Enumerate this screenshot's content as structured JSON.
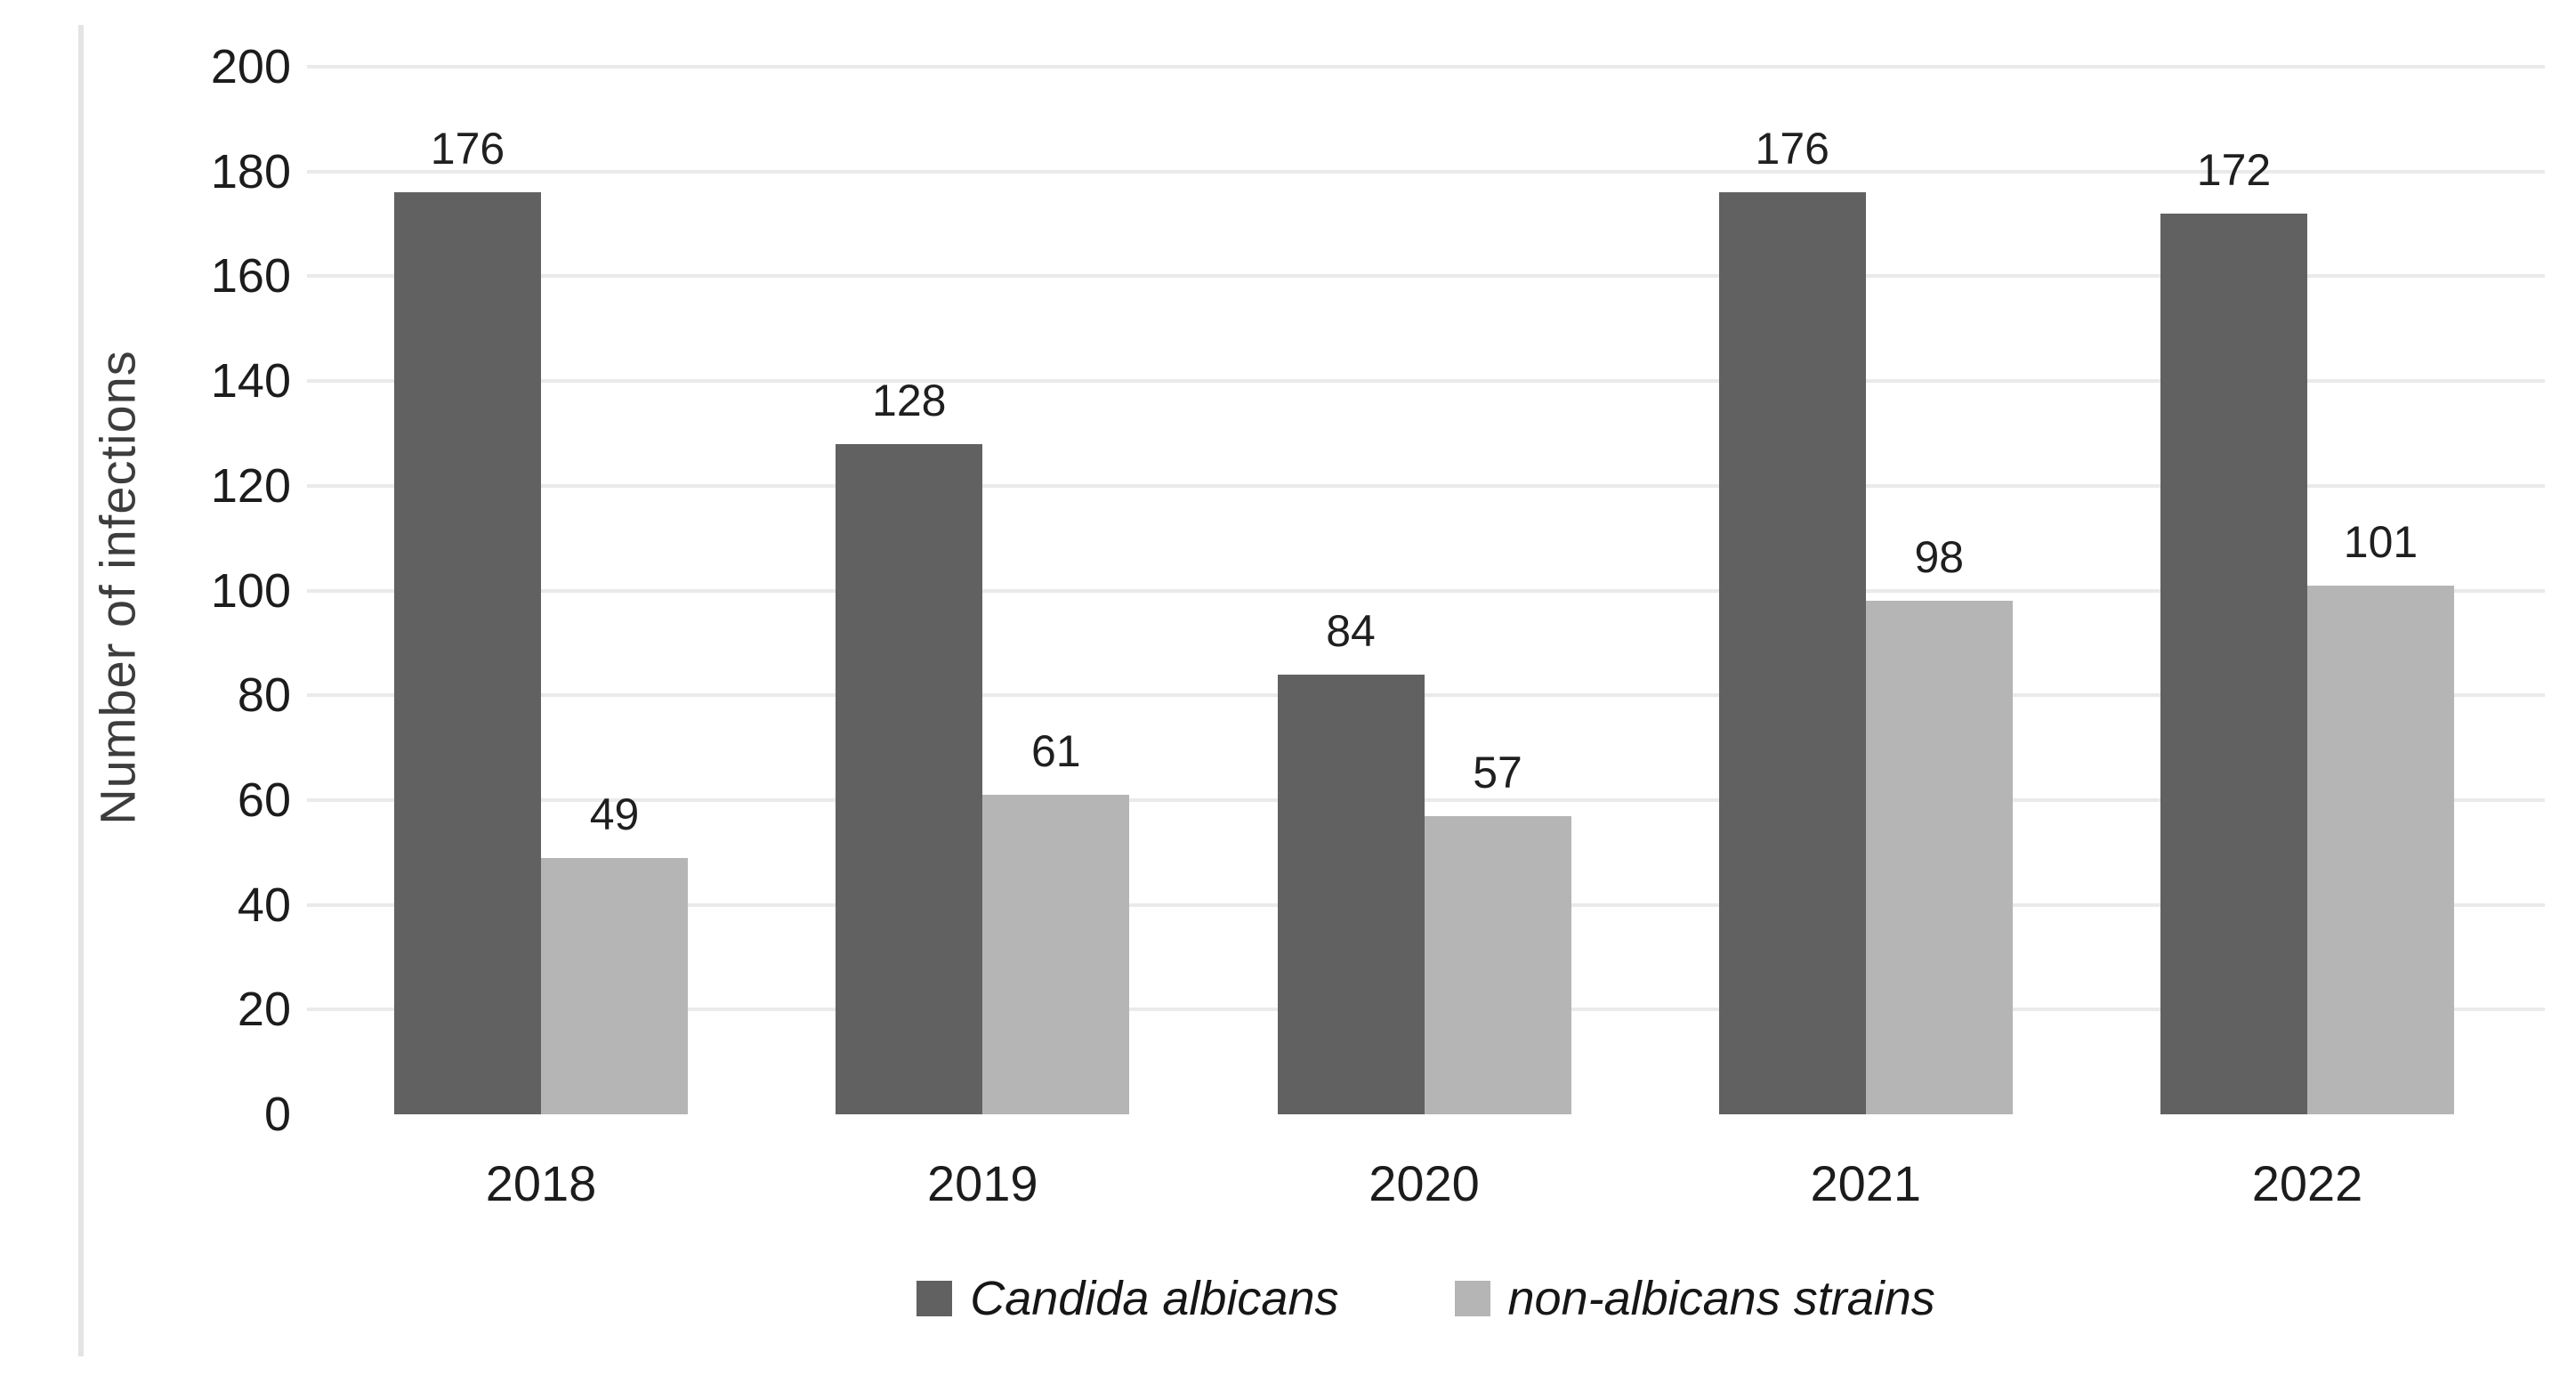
{
  "chart_data": {
    "type": "bar",
    "title": "",
    "ylabel": "Number of infections",
    "xlabel": "",
    "ylim": [
      0,
      200
    ],
    "ytick_step": 20,
    "grid": true,
    "legend_position": "bottom",
    "categories": [
      "2018",
      "2019",
      "2020",
      "2021",
      "2022"
    ],
    "series": [
      {
        "name": "Candida albicans",
        "color": "#616161",
        "values": [
          176,
          128,
          84,
          176,
          172
        ]
      },
      {
        "name": "non-albicans strains",
        "color": "#b5b5b5",
        "values": [
          49,
          61,
          57,
          98,
          101
        ]
      }
    ],
    "data_labels_shown": true,
    "gridline_color": "#eaeaea",
    "text_color": "#1c1c1c"
  }
}
